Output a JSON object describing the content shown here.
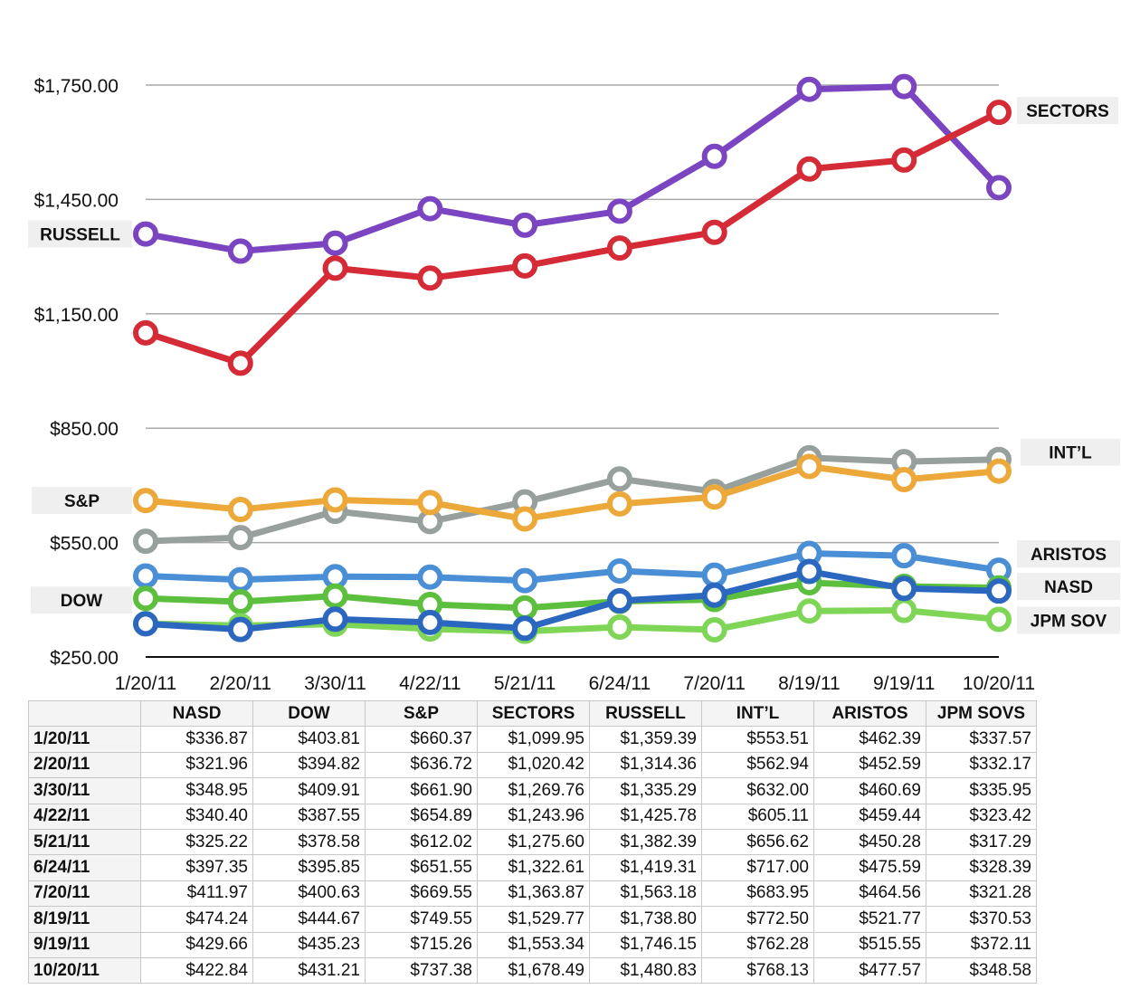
{
  "chart_data": {
    "type": "line",
    "x": [
      "1/20/11",
      "2/20/11",
      "3/30/11",
      "4/22/11",
      "5/21/11",
      "6/24/11",
      "7/20/11",
      "8/19/11",
      "9/19/11",
      "10/20/11"
    ],
    "yticks": [
      "$250.00",
      "$550.00",
      "$850.00",
      "$1,150.00",
      "$1,450.00",
      "$1,750.00"
    ],
    "ylim": [
      250,
      1750
    ],
    "grid": true,
    "series": [
      {
        "name": "RUSSELL",
        "color": "#7b44c0",
        "values": [
          1359.39,
          1314.36,
          1335.29,
          1425.78,
          1382.39,
          1419.31,
          1563.18,
          1738.8,
          1746.15,
          1480.83
        ]
      },
      {
        "name": "SECTORS",
        "color": "#d42b36",
        "values": [
          1099.95,
          1020.42,
          1269.76,
          1243.96,
          1275.6,
          1322.61,
          1363.87,
          1529.77,
          1553.34,
          1678.49
        ]
      },
      {
        "name": "INT’L",
        "color": "#97a09d",
        "values": [
          553.51,
          562.94,
          632.0,
          605.11,
          656.62,
          717.0,
          683.95,
          772.5,
          762.28,
          768.13
        ]
      },
      {
        "name": "S&P",
        "color": "#eda83a",
        "values": [
          660.37,
          636.72,
          661.9,
          654.89,
          612.02,
          651.55,
          669.55,
          749.55,
          715.26,
          737.38
        ]
      },
      {
        "name": "ARISTOS",
        "color": "#4a8fd6",
        "values": [
          462.39,
          452.59,
          460.69,
          459.44,
          450.28,
          475.59,
          464.56,
          521.77,
          515.55,
          477.57
        ]
      },
      {
        "name": "DOW",
        "color": "#5cbf3d",
        "values": [
          403.81,
          394.82,
          409.91,
          387.55,
          378.58,
          395.85,
          400.63,
          444.67,
          435.23,
          431.21
        ]
      },
      {
        "name": "JPM SOV",
        "color": "#7fd556",
        "values": [
          337.57,
          332.17,
          335.95,
          323.42,
          317.29,
          328.39,
          321.28,
          370.53,
          372.11,
          348.58
        ]
      },
      {
        "name": "NASD",
        "color": "#2c67bf",
        "values": [
          336.87,
          321.96,
          348.95,
          340.4,
          325.22,
          397.35,
          411.97,
          474.24,
          429.66,
          422.84
        ]
      }
    ]
  },
  "table": {
    "headers": [
      "NASD",
      "DOW",
      "S&P",
      "SECTORS",
      "RUSSELL",
      "INT’L",
      "ARISTOS",
      "JPM SOVS"
    ],
    "rows": [
      {
        "date": "1/20/11",
        "cells": [
          "$336.87",
          "$403.81",
          "$660.37",
          "$1,099.95",
          "$1,359.39",
          "$553.51",
          "$462.39",
          "$337.57"
        ]
      },
      {
        "date": "2/20/11",
        "cells": [
          "$321.96",
          "$394.82",
          "$636.72",
          "$1,020.42",
          "$1,314.36",
          "$562.94",
          "$452.59",
          "$332.17"
        ]
      },
      {
        "date": "3/30/11",
        "cells": [
          "$348.95",
          "$409.91",
          "$661.90",
          "$1,269.76",
          "$1,335.29",
          "$632.00",
          "$460.69",
          "$335.95"
        ]
      },
      {
        "date": "4/22/11",
        "cells": [
          "$340.40",
          "$387.55",
          "$654.89",
          "$1,243.96",
          "$1,425.78",
          "$605.11",
          "$459.44",
          "$323.42"
        ]
      },
      {
        "date": "5/21/11",
        "cells": [
          "$325.22",
          "$378.58",
          "$612.02",
          "$1,275.60",
          "$1,382.39",
          "$656.62",
          "$450.28",
          "$317.29"
        ]
      },
      {
        "date": "6/24/11",
        "cells": [
          "$397.35",
          "$395.85",
          "$651.55",
          "$1,322.61",
          "$1,419.31",
          "$717.00",
          "$475.59",
          "$328.39"
        ]
      },
      {
        "date": "7/20/11",
        "cells": [
          "$411.97",
          "$400.63",
          "$669.55",
          "$1,363.87",
          "$1,563.18",
          "$683.95",
          "$464.56",
          "$321.28"
        ]
      },
      {
        "date": "8/19/11",
        "cells": [
          "$474.24",
          "$444.67",
          "$749.55",
          "$1,529.77",
          "$1,738.80",
          "$772.50",
          "$521.77",
          "$370.53"
        ]
      },
      {
        "date": "9/19/11",
        "cells": [
          "$429.66",
          "$435.23",
          "$715.26",
          "$1,553.34",
          "$1,746.15",
          "$762.28",
          "$515.55",
          "$372.11"
        ]
      },
      {
        "date": "10/20/11",
        "cells": [
          "$422.84",
          "$431.21",
          "$737.38",
          "$1,678.49",
          "$1,480.83",
          "$768.13",
          "$477.57",
          "$348.58"
        ]
      }
    ]
  }
}
